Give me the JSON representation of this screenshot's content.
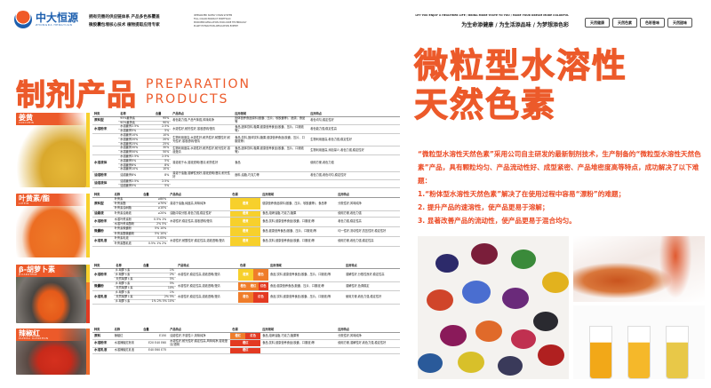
{
  "header": {
    "logo_cn": "中大恒源",
    "logo_en": "ZHONGDA HENGYUAN",
    "tagline_lines": [
      "拥有完善的供应链体系  产品多色系覆盖",
      "微胶囊包埋核心技术  植物提取应用专家"
    ],
    "tagline_en_lines": [
      "INTEGRATED SUPPLY CHAIN SYSTEM",
      "FULL COLOR PRODUCT PORTFOLIO",
      "MICROENCAPSULATION STAR-CORE TECHNOLOGY",
      "PLANT EXTRACTION APPLICATION EXPERT"
    ],
    "slogan_en": "LET YOU ENJOY A HEALTHIER LIFE / BRING MORE TASTE TO YOU / MAKE YOUR DREAM MORE COLORFUL",
    "slogan_cn": "为生命添健康 / 为生活添品味 / 为梦想添色彩",
    "badges": [
      "天然健康",
      "天然色素",
      "色彩香味",
      "天然甜味"
    ]
  },
  "section_title": {
    "cn": "制剂产品",
    "en_line1": "PREPARATION",
    "en_line2": "PRODUCTS"
  },
  "colors": {
    "accent": "#ec5a2a",
    "yellow": "#f7d02c",
    "orange": "#ef7d2a",
    "red": "#e33a22"
  },
  "columns": [
    "种类",
    "名称",
    "含量",
    "产品特点",
    "色调",
    "应用领域",
    "应用特点"
  ],
  "products": [
    {
      "name_cn": "姜黄",
      "name_en": "CURCUMIN",
      "has_color": false,
      "groups": [
        {
          "kind": "原料型",
          "items": [
            [
              "95%姜黄素",
              "95%"
            ],
            [
              "90%姜黄素",
              "90%"
            ]
          ],
          "features": "着色能力强,产品气味强,风味纯净",
          "apps": "固体营养食品原料(胶囊、压片、软胶囊等)、酒类、食品等",
          "traits": "着色均匀,稳定性好"
        },
        {
          "kind": "水溶粉末",
          "items": [
            [
              "水溶姜黄2.5%",
              "2.5%"
            ],
            [
              "水溶姜黄5%",
              "5%"
            ]
          ],
          "features": "水溶性好,耐热性好,溶液透明/澄清",
          "apps": "食品,固体饮料,糖果,健康营养食品(胶囊、压片、口服液等)",
          "traits": "着色能力强,稳定性高"
        },
        {
          "kind": "",
          "items": [
            [
              "水溶姜黄10%",
              "10%"
            ],
            [
              "水溶姜黄20%",
              "20%"
            ],
            [
              "水溶姜黄25%",
              "25%"
            ]
          ],
          "features": "生物利用度高,水溶性好,耐热性好,耐酸性好,耐光性好,溶液透明/澄清",
          "apps": "食品,饮料,固体饮料,糖果,健康营养食品(胶囊、压片、口服液等)",
          "traits": "生物利用度高,着色力强,稳定性好"
        },
        {
          "kind": "",
          "items": [
            [
              "水溶姜黄30%",
              "30%"
            ],
            [
              "水溶姜黄50%",
              "50%"
            ]
          ],
          "features": "生物利用度高,水溶性好,耐热性好,耐光性好,溶液澄清",
          "apps": "食品,固体饮料,糖果,健康营养食品(胶囊、压片、口服液等)",
          "traits": "生物利用度高,添加量少,着色力强,稳定性好"
        },
        {
          "kind": "水溶液体",
          "items": [
            [
              "水溶姜黄2.5%",
              "2.5%"
            ],
            [
              "水溶姜黄5%",
              "5%"
            ],
            [
              "水溶姜黄8%",
              "8%"
            ],
            [
              "水溶姜黄10%",
              "10%"
            ]
          ],
          "features": "易溶液于水,溶液透明/澄清,耐热性好",
          "apps": "食品",
          "traits": "使用方便,着色力强"
        },
        {
          "kind": "油溶粉末",
          "items": [
            [
              "油溶姜黄8%",
              "8%"
            ]
          ],
          "features": "易溶于油脂,溶解性良好,溶液透明/澄清,耐光性好",
          "apps": "面料,油脂,巧克力等",
          "traits": "着色力强,着色均匀,稳定性好"
        },
        {
          "kind": "油溶液体",
          "items": [
            [
              "油溶姜黄2.5%",
              "2.5%"
            ],
            [
              "油溶姜黄5%",
              "5%"
            ]
          ],
          "features": "",
          "apps": "",
          "traits": ""
        }
      ]
    },
    {
      "name_cn": "叶黄素/酯",
      "name_en": "LUTEIN",
      "has_color": true,
      "groups": [
        {
          "kind": "原料型",
          "items": [
            [
              "叶黄素",
              "≥80%"
            ],
            [
              "叶黄素酯",
              "≥70%"
            ],
            [
              "叶黄素油树脂",
              "≥10%"
            ]
          ],
          "features": "易溶于油脂,纯度高,风味纯净",
          "colors": [
            [
              "橙黄",
              "yellow"
            ]
          ],
          "apps": "健康营养食品原料(胶囊、压片、软胶囊等)、食品等",
          "traits": "分散性好,风味纯净"
        },
        {
          "kind": "油悬液",
          "items": [
            [
              "叶黄素油悬液",
              "≥20%"
            ]
          ],
          "features": "油脂中易分散,着色力强,稳定性好",
          "colors": [
            [
              "橙黄",
              "yellow"
            ]
          ],
          "apps": "食品,焙烤油脂,巧克力,糖果",
          "traits": "使用方便,着色力强"
        },
        {
          "kind": "水溶粉末",
          "items": [
            [
              "水溶叶黄素粉",
              "0.5% 1%"
            ],
            [
              "水溶叶黄素酯粉",
              "2% 5%"
            ]
          ],
          "features": "水溶性好,稳定性高,溶液透明/澄清",
          "colors": [
            [
              "橙黄",
              "yellow"
            ]
          ],
          "apps": "食品,饮料,健康营养食品(胶囊、口服液)等",
          "traits": "着色力强,稳定性高"
        },
        {
          "kind": "微囊粉",
          "items": [
            [
              "叶黄素微囊粉",
              "5% 10%"
            ],
            [
              "叶黄素酯微囊粉",
              "5% 10%"
            ]
          ],
          "features": "",
          "colors": [
            [
              "橙黄",
              "yellow"
            ]
          ],
          "apps": "食品,健康营养食品(胶囊、压片、口服液)等",
          "traits": "均一性好,流动性好,抗压性好,稳定性好"
        },
        {
          "kind": "水溶乳液",
          "items": [
            [
              "叶黄素乳液",
              "0.05%"
            ],
            [
              "叶黄素酯乳液",
              "0.5% 1% 2%"
            ]
          ],
          "features": "水溶性好,耐酸性好,稳定性高,溶液透明/澄清",
          "colors": [
            [
              "橙黄",
              "yellow"
            ]
          ],
          "apps": "食品,饮料,健康营养食品(胶囊、口服液)等",
          "traits": "使用方便,着色力强,稳定性高"
        }
      ]
    },
    {
      "name_cn": "β-胡萝卜素",
      "name_en": "β-CAROTENE",
      "has_color": true,
      "groups": [
        {
          "kind": "水溶粉末",
          "items": [
            [
              "β-胡萝卜素",
              "1%"
            ],
            [
              "β-胡萝卜素",
              "2%"
            ],
            [
              "天然胡萝卜素",
              "5%"
            ]
          ],
          "features": "水溶性好,稳定性高,溶液透明/澄清",
          "colors": [
            [
              "橙黄",
              "yellow"
            ],
            [
              "橙色",
              "orange"
            ]
          ],
          "apps": "食品,饮料,健康营养食品(胶囊、压片、口服液)等",
          "traits": "溶解性好,分散性良好,稳定性高"
        },
        {
          "kind": "微囊粉",
          "items": [
            [
              "β-胡萝卜素",
              "5%"
            ],
            [
              "天然胡萝卜素",
              "10%"
            ]
          ],
          "features": "水溶性好,稳定性高,溶液透明/澄清",
          "colors": [
            [
              "橙色",
              "orange"
            ],
            [
              "橙红",
              "orange"
            ],
            [
              "红色",
              "red"
            ]
          ],
          "apps": "食品,健康营养食品(胶囊、压片、口服液)等",
          "traits": "溶解性好,色调稳定"
        },
        {
          "kind": "水溶乳液",
          "items": [
            [
              "β-胡萝卜素",
              "1%"
            ],
            [
              "天然胡萝卜素",
              "2% 5%"
            ],
            [
              "β-胡萝卜素",
              "1% 2% 5% 10%"
            ]
          ],
          "features": "水溶性好,稳定性高,溶液透明/澄清",
          "colors": [
            [
              "橙色",
              "orange"
            ],
            [
              "红色",
              "red"
            ]
          ],
          "apps": "食品,饮料,健康营养食品(胶囊、压片、口服液)等",
          "traits": "使用方便,着色力强,稳定性好"
        }
      ]
    },
    {
      "name_cn": "辣椒红",
      "name_en": "PAPRIKA OLEORESIN",
      "has_color": true,
      "groups": [
        {
          "kind": "原料",
          "items": [
            [
              "辣椒红",
              "E150"
            ]
          ],
          "features": "油溶性好,不溶性少,风味纯净",
          "colors": [
            [
              "橙红",
              "orange"
            ],
            [
              "红色",
              "red"
            ]
          ],
          "apps": "食品,焙烤油脂,巧克力,糖果等",
          "traits": "分散性好,风味纯净"
        },
        {
          "kind": "水溶粉末",
          "items": [
            [
              "水溶辣椒红粉末",
              "E20 E40 E60"
            ]
          ],
          "features": "水溶性好,耐光性好,稳定性高,风味纯净,溶液澄清/透明",
          "colors": [
            [
              "橙红",
              "red"
            ]
          ],
          "apps": "食品,饮料,健康营养食品(胶囊、口服液)等",
          "traits": "使用方便,溶解性好,着色力强,稳定性好"
        },
        {
          "kind": "水溶乳液",
          "items": [
            [
              "水溶辣椒红乳液",
              "E40 E60 E75"
            ]
          ],
          "features": "",
          "colors": [
            [
              "橙红",
              "red"
            ]
          ],
          "apps": "",
          "traits": ""
        }
      ]
    }
  ],
  "right": {
    "headline_line1": "微粒型水溶性",
    "headline_line2": "天然色素",
    "intro": "“微粒型水溶性天然色素”采用公司自主研发的最新制剂技术，生产制备的“微粒型水溶性天然色素”产品，具有颗粒均匀、产品流动性好、成型紧密、产品堆密度高等特点，成功解决了以下难题：",
    "points": [
      "1.“粉体型水溶性天然色素”解决了在使用过程中容易“漂粉”的难题；",
      "2. 提升产品的速溶性，使产品更易于溶解；",
      "3. 显著改善产品的流动性，使产品更易于混合均匀。"
    ],
    "dot_colors": [
      "#2c2a6a",
      "#7a1e3a",
      "#3a8a3a",
      "#e2b21e",
      "#d0452a",
      "#4a6ed0",
      "#6a2a7a",
      "#2a2a30",
      "#8a1a5a",
      "#e06a2a",
      "#c03050",
      "#2a5a9a",
      "#d8c02a",
      "#3a3a5a",
      "#b02020"
    ],
    "tube_colors": [
      "#f2a818",
      "#f5b82a",
      "#e8c848"
    ]
  }
}
